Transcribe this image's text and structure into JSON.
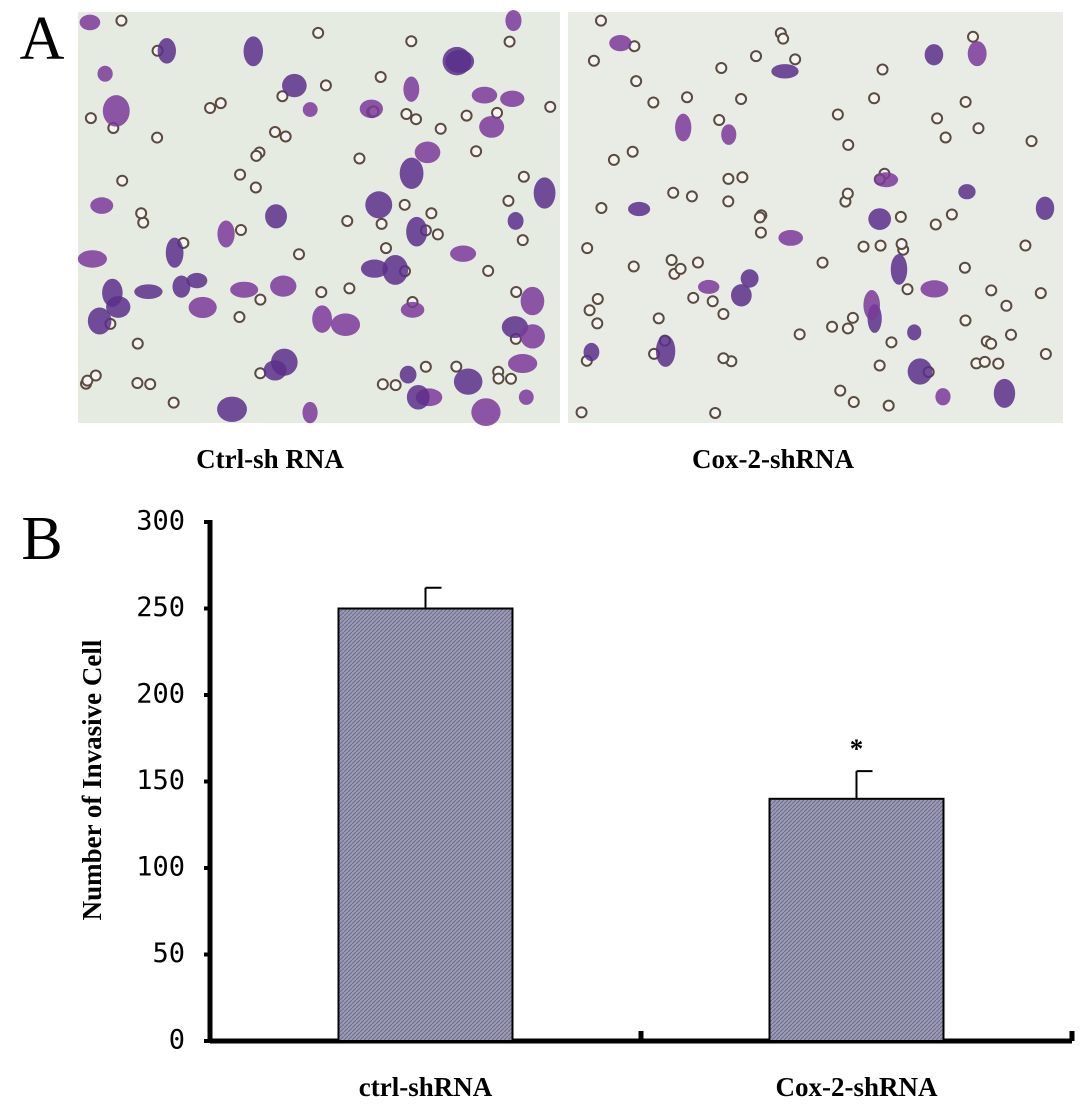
{
  "panels": {
    "labels": [
      "A",
      "B"
    ],
    "image_captions": [
      "Ctrl-sh RNA",
      "Cox-2-shRNA"
    ]
  },
  "chart_data": {
    "type": "bar",
    "y_label": "Number of Invasive Cell",
    "categories": [
      "ctrl-shRNA",
      "Cox-2-shRNA"
    ],
    "values": [
      250,
      140
    ],
    "errors": [
      12,
      16
    ],
    "color": "#8a8aa6",
    "ylim": [
      0,
      300
    ],
    "yticks": [
      0,
      50,
      100,
      150,
      200,
      250,
      300
    ],
    "annotations": [
      {
        "category": 1,
        "text": "*"
      }
    ]
  }
}
